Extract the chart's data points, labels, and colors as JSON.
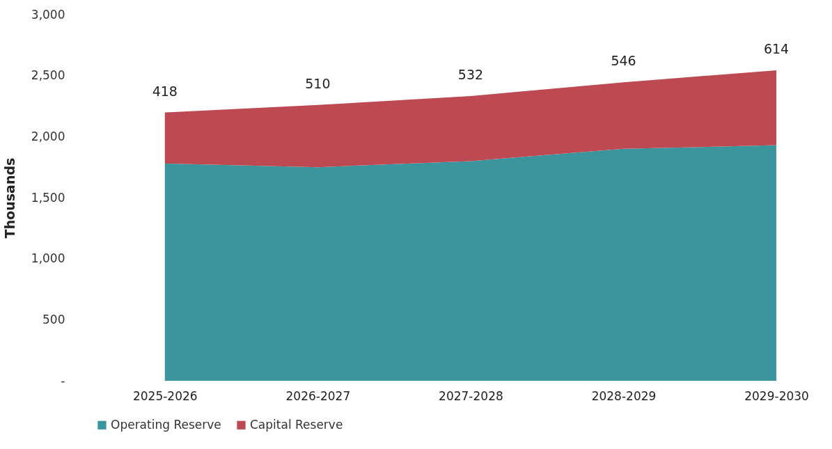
{
  "chart_data": {
    "type": "area",
    "stacked": true,
    "ylabel": "Thousands",
    "categories": [
      "2025-2026",
      "2026-2027",
      "2027-2028",
      "2028-2029",
      "2029-2030"
    ],
    "ylim": [
      0,
      3000
    ],
    "yticks": [
      {
        "value": 0,
        "label": "-"
      },
      500,
      {
        "value": 1000,
        "label": "1,000"
      },
      {
        "value": 1500,
        "label": "1,500"
      },
      {
        "value": 2000,
        "label": "2,000"
      },
      {
        "value": 2500,
        "label": "2,500"
      },
      {
        "value": 3000,
        "label": "3,000"
      }
    ],
    "legend": "bottom",
    "series": [
      {
        "name": "Operating Reserve",
        "color": "#3a969c",
        "values": [
          1780,
          1750,
          1800,
          1900,
          1930
        ]
      },
      {
        "name": "Capital Reserve",
        "color": "#bd4a53",
        "values": [
          418,
          510,
          532,
          546,
          614
        ],
        "value_labels": [
          "418",
          "510",
          "532",
          "546",
          "614"
        ]
      }
    ]
  }
}
